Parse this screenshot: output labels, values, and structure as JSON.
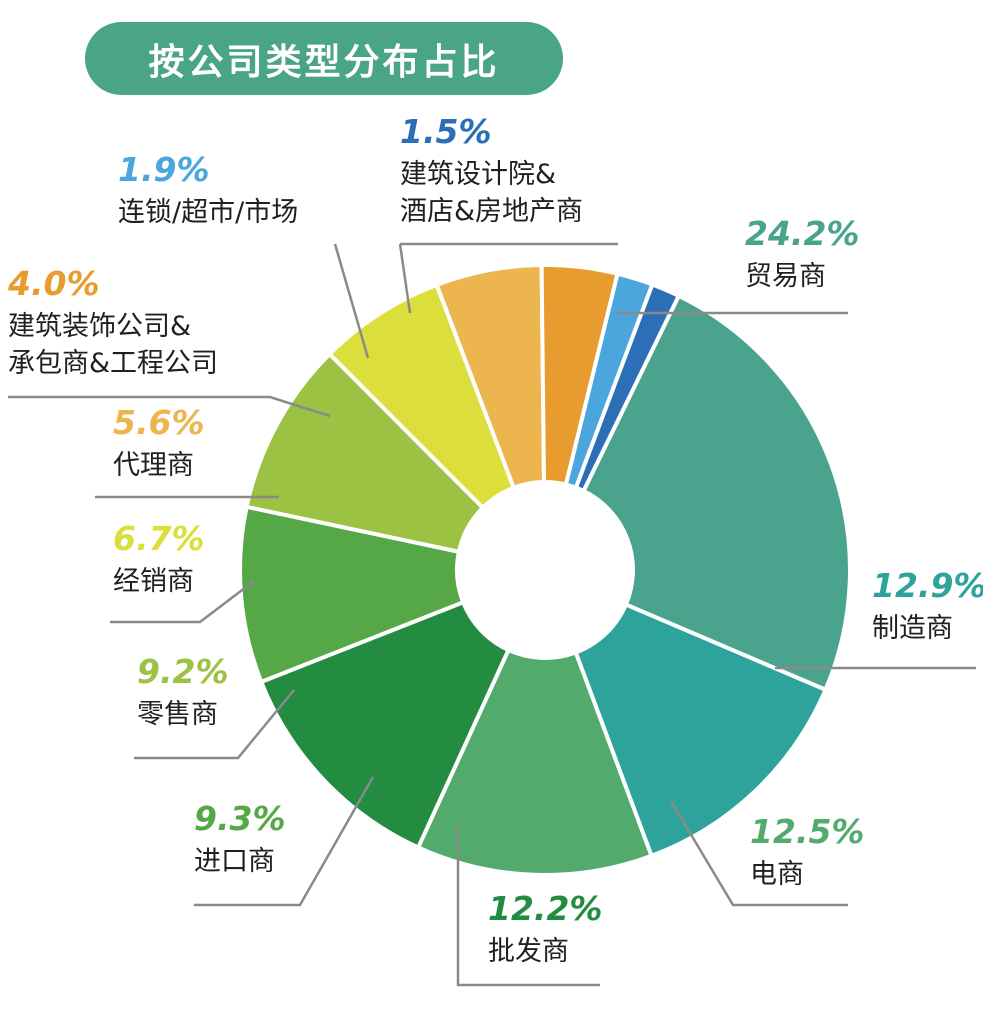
{
  "title": "按公司类型分布占比",
  "chart_data": {
    "type": "pie",
    "donut": true,
    "title": "按公司类型分布占比",
    "slices": [
      {
        "label": "贸易商",
        "pct_label": "24.2%",
        "value": 24.2,
        "color": "#4aa38d"
      },
      {
        "label": "制造商",
        "pct_label": "12.9%",
        "value": 12.9,
        "color": "#2ea39b"
      },
      {
        "label": "电商",
        "pct_label": "12.5%",
        "value": 12.5,
        "color": "#52ab6d"
      },
      {
        "label": "批发商",
        "pct_label": "12.2%",
        "value": 12.2,
        "color": "#238c41"
      },
      {
        "label": "进口商",
        "pct_label": "9.3%",
        "value": 9.3,
        "color": "#56a847"
      },
      {
        "label": "零售商",
        "pct_label": "9.2%",
        "value": 9.2,
        "color": "#9bc242"
      },
      {
        "label": "经销商",
        "pct_label": "6.7%",
        "value": 6.7,
        "color": "#dcde3c"
      },
      {
        "label": "代理商",
        "pct_label": "5.6%",
        "value": 5.6,
        "color": "#edb54e"
      },
      {
        "label": [
          "建筑装饰公司&",
          "承包商&工程公司"
        ],
        "pct_label": "4.0%",
        "value": 4.0,
        "color": "#e89b2f"
      },
      {
        "label": "连锁/超市/市场",
        "pct_label": "1.9%",
        "value": 1.9,
        "color": "#4aa6dc"
      },
      {
        "label": [
          "建筑设计院&",
          "酒店&房地产商"
        ],
        "pct_label": "1.5%",
        "value": 1.5,
        "color": "#2d6fb7"
      }
    ]
  }
}
